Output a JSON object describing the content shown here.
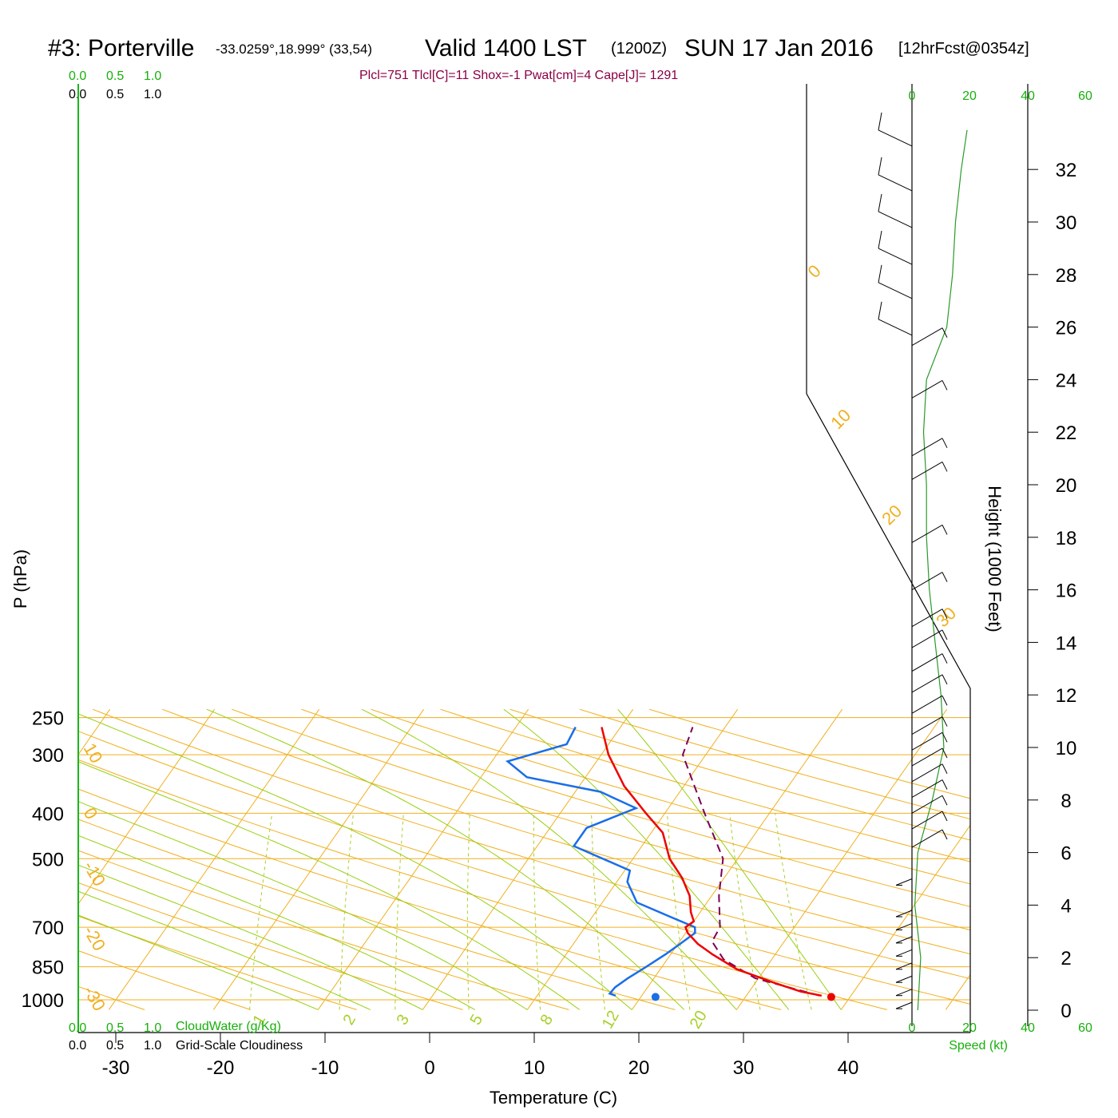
{
  "header": {
    "station": "#3: Porterville",
    "coords": "-33.0259°,18.999° (33,54)",
    "valid": "Valid 1400 LST",
    "utc": "(1200Z)",
    "date": "SUN 17 Jan 2016",
    "forecast": "[12hrFcst@0354z]",
    "params": "Plcl=751 Tlcl[C]=11 Shox=-1 Pwat[cm]=4 Cape[J]= 1291"
  },
  "cloud_scales": {
    "cloudwater_ticks": [
      "0.0",
      "0.5",
      "1.0"
    ],
    "cloudiness_ticks": [
      "0.0",
      "0.5",
      "1.0"
    ],
    "cloudwater_label": "CloudWater (g/Kg)",
    "cloudiness_label": "Grid-Scale Cloudiness"
  },
  "wind_panel": {
    "speed_ticks": [
      "0",
      "20",
      "40",
      "60"
    ],
    "speed_label": "Speed (kt)"
  },
  "colors": {
    "temperature": "#ee0000",
    "dewpoint": "#1a6ee8",
    "parcel": "#7a0058",
    "isotherm": "#f0b020",
    "dry_adiabat": "#98d010",
    "mixing_ratio": "#a8d02a",
    "accent_green": "#16b00a"
  },
  "chart_data": {
    "type": "skew-t",
    "xlabel": "Temperature (C)",
    "ylabel": "P (hPa)",
    "y2label": "Height (1000 Feet)",
    "x_ticks": [
      -30,
      -20,
      -10,
      0,
      10,
      20,
      30,
      40
    ],
    "pressure_ticks": [
      250,
      300,
      400,
      500,
      700,
      850,
      1000
    ],
    "height_ticks": [
      0,
      2,
      4,
      6,
      8,
      10,
      12,
      14,
      16,
      18,
      20,
      22,
      24,
      26,
      28,
      30,
      32
    ],
    "isotherm_labels_left": [
      "10",
      "0",
      "-10",
      "-20",
      "-30"
    ],
    "isotherm_labels_right": [
      "0",
      "10",
      "20",
      "30"
    ],
    "mixing_ratio_labels": [
      "1",
      "2",
      "3",
      "5",
      "8",
      "12",
      "20"
    ],
    "temperature_profile": [
      {
        "p": 980,
        "t": 37.2
      },
      {
        "p": 960,
        "t": 34.9
      },
      {
        "p": 920,
        "t": 31.8
      },
      {
        "p": 860,
        "t": 27.3
      },
      {
        "p": 800,
        "t": 24.0
      },
      {
        "p": 760,
        "t": 21.9
      },
      {
        "p": 720,
        "t": 20.2
      },
      {
        "p": 700,
        "t": 19.6
      },
      {
        "p": 680,
        "t": 20.0
      },
      {
        "p": 650,
        "t": 19.1
      },
      {
        "p": 600,
        "t": 17.9
      },
      {
        "p": 550,
        "t": 16.0
      },
      {
        "p": 500,
        "t": 13.5
      },
      {
        "p": 440,
        "t": 11.1
      },
      {
        "p": 400,
        "t": 8.2
      },
      {
        "p": 350,
        "t": 4.3
      },
      {
        "p": 300,
        "t": 0.7
      },
      {
        "p": 262,
        "t": -1.8
      }
    ],
    "dewpoint_profile": [
      {
        "p": 980,
        "t": 17.5
      },
      {
        "p": 970,
        "t": 16.8
      },
      {
        "p": 940,
        "t": 16.9
      },
      {
        "p": 900,
        "t": 17.5
      },
      {
        "p": 850,
        "t": 18.5
      },
      {
        "p": 800,
        "t": 19.5
      },
      {
        "p": 760,
        "t": 20.2
      },
      {
        "p": 720,
        "t": 20.9
      },
      {
        "p": 700,
        "t": 20.5
      },
      {
        "p": 660,
        "t": 17.0
      },
      {
        "p": 620,
        "t": 13.3
      },
      {
        "p": 560,
        "t": 11.0
      },
      {
        "p": 530,
        "t": 10.5
      },
      {
        "p": 470,
        "t": 3.5
      },
      {
        "p": 430,
        "t": 3.5
      },
      {
        "p": 390,
        "t": 6.9
      },
      {
        "p": 360,
        "t": 2.4
      },
      {
        "p": 335,
        "t": -5.6
      },
      {
        "p": 310,
        "t": -8.5
      },
      {
        "p": 285,
        "t": -4.0
      },
      {
        "p": 262,
        "t": -4.3
      }
    ],
    "parcel_profile": [
      {
        "p": 980,
        "t": 37.0
      },
      {
        "p": 900,
        "t": 29.7
      },
      {
        "p": 820,
        "t": 25.4
      },
      {
        "p": 751,
        "t": 23.1
      },
      {
        "p": 700,
        "t": 22.9
      },
      {
        "p": 600,
        "t": 20.7
      },
      {
        "p": 500,
        "t": 18.6
      },
      {
        "p": 400,
        "t": 13.8
      },
      {
        "p": 300,
        "t": 7.8
      },
      {
        "p": 262,
        "t": 6.9
      }
    ],
    "surface_temperature": {
      "p": 986,
      "t": 38.2
    },
    "surface_dewpoint": {
      "p": 986,
      "t": 21.4
    },
    "wind_speed_profile": [
      {
        "z": 0,
        "s": 2
      },
      {
        "z": 2,
        "s": 3
      },
      {
        "z": 4,
        "s": 1
      },
      {
        "z": 6,
        "s": 2
      },
      {
        "z": 8,
        "s": 7
      },
      {
        "z": 10,
        "s": 11
      },
      {
        "z": 12,
        "s": 10
      },
      {
        "z": 14,
        "s": 8
      },
      {
        "z": 16,
        "s": 6
      },
      {
        "z": 18,
        "s": 5
      },
      {
        "z": 20,
        "s": 5
      },
      {
        "z": 22,
        "s": 4
      },
      {
        "z": 24,
        "s": 5
      },
      {
        "z": 26,
        "s": 12
      },
      {
        "z": 28,
        "s": 14
      },
      {
        "z": 30,
        "s": 15
      },
      {
        "z": 32,
        "s": 17
      },
      {
        "z": 33.5,
        "s": 19
      }
    ],
    "wind_barbs": [
      {
        "z": 0.3,
        "s": 5
      },
      {
        "z": 0.8,
        "s": 5
      },
      {
        "z": 1.3,
        "s": 5
      },
      {
        "z": 1.8,
        "s": 5
      },
      {
        "z": 2.3,
        "s": 5
      },
      {
        "z": 2.8,
        "s": 5
      },
      {
        "z": 3.3,
        "s": 5
      },
      {
        "z": 3.8,
        "s": 5
      },
      {
        "z": 5.0,
        "s": 5
      },
      {
        "z": 6.2,
        "s": 10
      },
      {
        "z": 6.9,
        "s": 10
      },
      {
        "z": 7.5,
        "s": 10
      },
      {
        "z": 8.1,
        "s": 10
      },
      {
        "z": 8.7,
        "s": 10
      },
      {
        "z": 9.3,
        "s": 10
      },
      {
        "z": 9.9,
        "s": 10
      },
      {
        "z": 10.5,
        "s": 10
      },
      {
        "z": 11.3,
        "s": 10
      },
      {
        "z": 12.1,
        "s": 10
      },
      {
        "z": 12.9,
        "s": 10
      },
      {
        "z": 13.8,
        "s": 10
      },
      {
        "z": 14.6,
        "s": 10
      },
      {
        "z": 16.0,
        "s": 10
      },
      {
        "z": 17.8,
        "s": 10
      },
      {
        "z": 20.2,
        "s": 10
      },
      {
        "z": 21.1,
        "s": 10
      },
      {
        "z": 23.3,
        "s": 10
      },
      {
        "z": 25.3,
        "s": 10
      },
      {
        "z": 26.6,
        "s": 50
      },
      {
        "z": 28.0,
        "s": 50
      },
      {
        "z": 29.3,
        "s": 50
      },
      {
        "z": 30.7,
        "s": 50
      },
      {
        "z": 32.1,
        "s": 50
      },
      {
        "z": 33.8,
        "s": 50
      }
    ]
  }
}
